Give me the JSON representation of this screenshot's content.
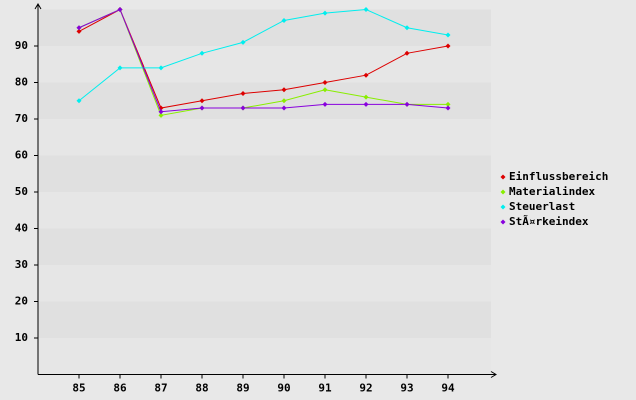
{
  "chart_data": {
    "type": "line",
    "categories": [
      "85",
      "86",
      "87",
      "88",
      "89",
      "90",
      "91",
      "92",
      "93",
      "94"
    ],
    "series": [
      {
        "name": "Einflussbereich",
        "color": "#dd0000",
        "values": [
          94,
          100,
          73,
          75,
          77,
          78,
          80,
          82,
          88,
          90
        ]
      },
      {
        "name": "Materialindex",
        "color": "#88ee00",
        "values": [
          95,
          100,
          71,
          73,
          73,
          75,
          78,
          76,
          74,
          74
        ]
      },
      {
        "name": "Steuerlast",
        "color": "#00eeee",
        "values": [
          75,
          84,
          84,
          88,
          91,
          97,
          99,
          100,
          95,
          93
        ]
      },
      {
        "name": "StÃ¤rkeindex",
        "color": "#8800dd",
        "values": [
          95,
          100,
          72,
          73,
          73,
          73,
          74,
          74,
          74,
          73
        ]
      }
    ],
    "ylim": [
      0,
      100
    ],
    "yticks": [
      10,
      20,
      30,
      40,
      50,
      60,
      70,
      80,
      90
    ],
    "grid": true,
    "legend": "right"
  }
}
